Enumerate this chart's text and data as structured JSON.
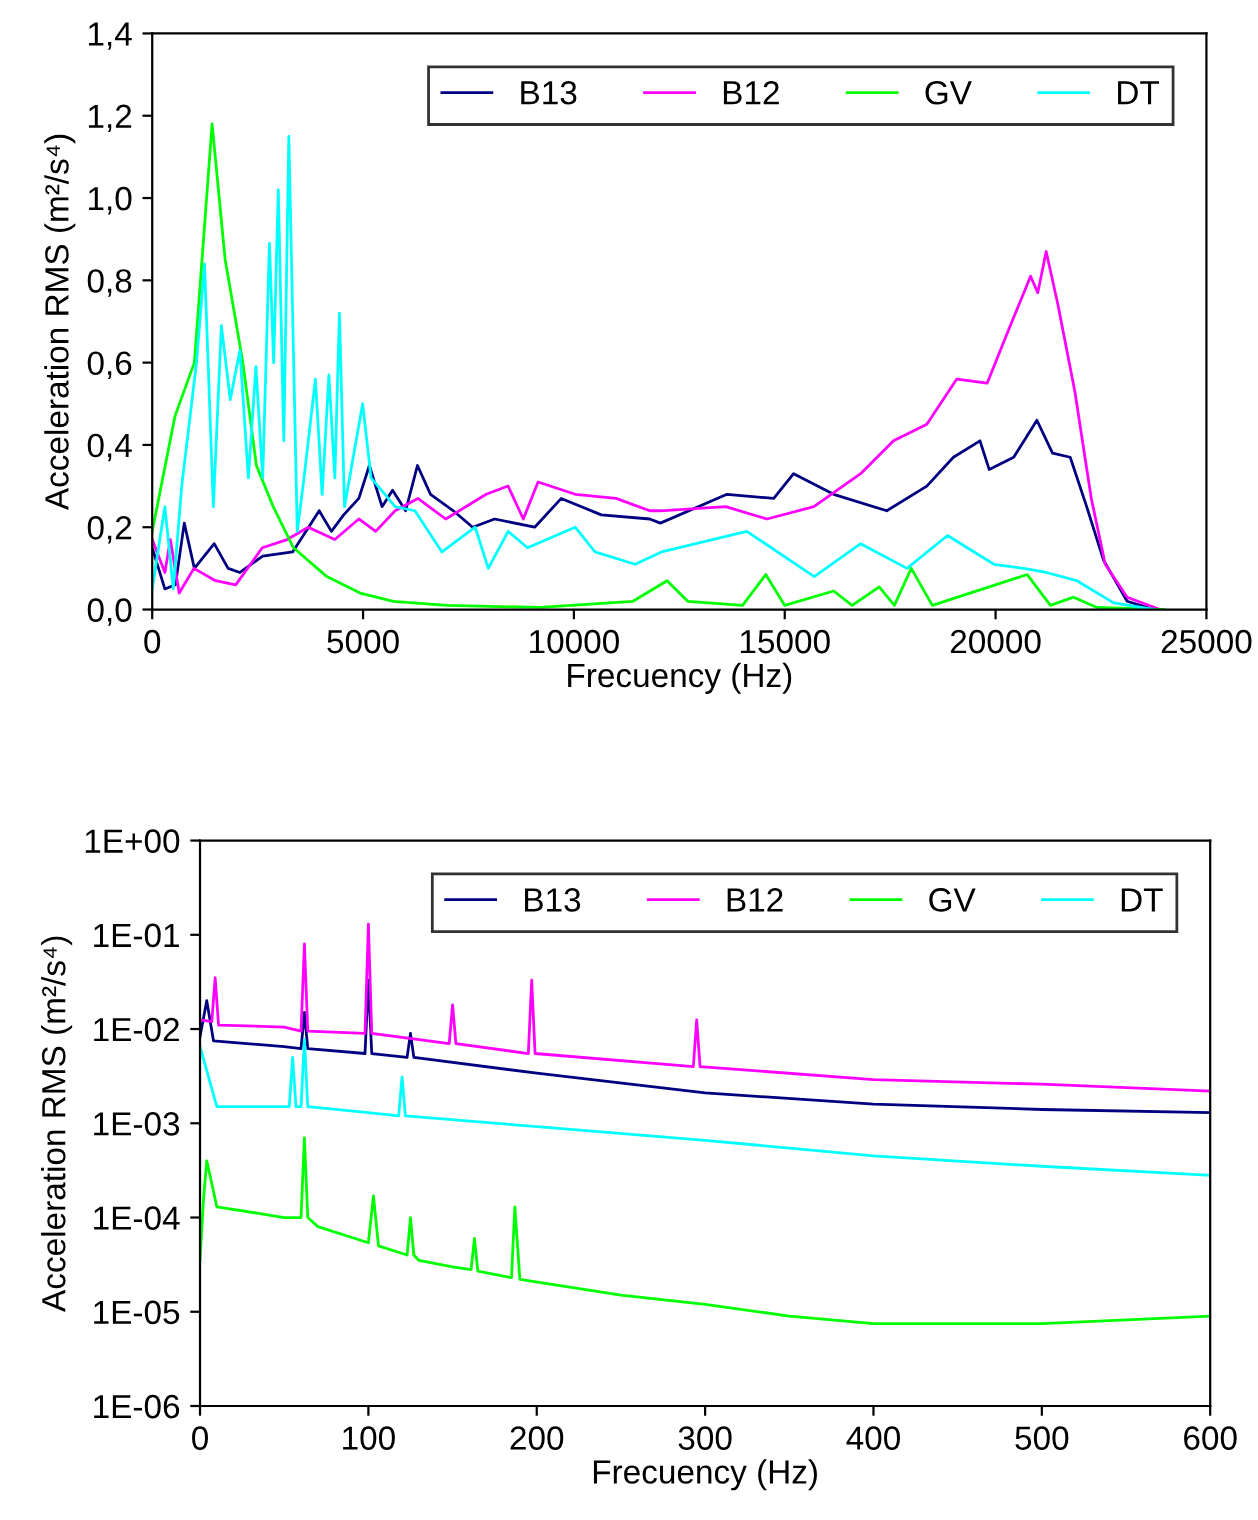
{
  "chart_data": [
    {
      "type": "line",
      "xlabel": "Frecuency (Hz)",
      "ylabel": "Acceleration RMS (m²/s⁴)",
      "legend": "top right",
      "xlim": [
        0,
        25000
      ],
      "xticks": [
        0,
        5000,
        10000,
        15000,
        20000,
        25000
      ],
      "ylim": [
        0,
        1.4
      ],
      "yticks": [
        {
          "value": 0,
          "label": "0,0"
        },
        {
          "value": 0.2,
          "label": "0,2"
        },
        {
          "value": 0.4,
          "label": "0,4"
        },
        {
          "value": 0.6,
          "label": "0,6"
        },
        {
          "value": 0.8,
          "label": "0,8"
        },
        {
          "value": 1.0,
          "label": "1,0"
        },
        {
          "value": 1.2,
          "label": "1,2"
        },
        {
          "value": 1.4,
          "label": "1,4"
        }
      ],
      "series": [
        {
          "name": "B13",
          "color": "#000080",
          "x": [
            0,
            300,
            550,
            760,
            1000,
            1470,
            1800,
            2080,
            2620,
            3330,
            3960,
            4250,
            4540,
            4900,
            5150,
            5450,
            5700,
            6010,
            6290,
            6600,
            7140,
            7600,
            8120,
            9070,
            9700,
            10650,
            11800,
            12050,
            13630,
            14740,
            15210,
            16160,
            17420,
            18370,
            19000,
            19630,
            19850,
            20430,
            20980,
            21350,
            21770,
            22160,
            22560,
            23120,
            23750
          ],
          "values": [
            0.15,
            0.05,
            0.06,
            0.21,
            0.1,
            0.16,
            0.1,
            0.09,
            0.13,
            0.14,
            0.24,
            0.19,
            0.23,
            0.27,
            0.35,
            0.25,
            0.29,
            0.24,
            0.35,
            0.28,
            0.24,
            0.2,
            0.22,
            0.2,
            0.27,
            0.23,
            0.22,
            0.21,
            0.28,
            0.27,
            0.33,
            0.28,
            0.24,
            0.3,
            0.37,
            0.41,
            0.34,
            0.37,
            0.46,
            0.38,
            0.37,
            0.25,
            0.12,
            0.02,
            0.0
          ]
        },
        {
          "name": "B12",
          "color": "#ff00ff",
          "x": [
            0,
            300,
            430,
            640,
            990,
            1500,
            1980,
            2610,
            3200,
            3700,
            4330,
            4900,
            5300,
            5760,
            6300,
            6960,
            7920,
            8440,
            8800,
            9150,
            10030,
            11000,
            11800,
            12050,
            13600,
            14580,
            15690,
            16800,
            17580,
            18370,
            19080,
            19800,
            20350,
            20830,
            21000,
            21200,
            21480,
            21880,
            22270,
            22600,
            23120,
            23900
          ],
          "values": [
            0.17,
            0.09,
            0.17,
            0.04,
            0.1,
            0.07,
            0.06,
            0.15,
            0.17,
            0.2,
            0.17,
            0.22,
            0.19,
            0.24,
            0.27,
            0.22,
            0.28,
            0.3,
            0.22,
            0.31,
            0.28,
            0.27,
            0.24,
            0.24,
            0.25,
            0.22,
            0.25,
            0.33,
            0.41,
            0.45,
            0.56,
            0.55,
            0.69,
            0.81,
            0.77,
            0.87,
            0.74,
            0.53,
            0.27,
            0.11,
            0.03,
            0.0
          ]
        },
        {
          "name": "GV",
          "color": "#00ff00",
          "x": [
            0,
            540,
            1000,
            1420,
            1730,
            1900,
            2150,
            2470,
            2870,
            3350,
            4140,
            4930,
            5720,
            6990,
            9200,
            11400,
            12210,
            12700,
            14000,
            14550,
            15000,
            16160,
            16600,
            17240,
            17600,
            18000,
            18500,
            20750,
            21300,
            21850,
            22400,
            23120,
            24000
          ],
          "values": [
            0.19,
            0.47,
            0.6,
            1.18,
            0.85,
            0.75,
            0.6,
            0.35,
            0.25,
            0.15,
            0.08,
            0.04,
            0.02,
            0.01,
            0.005,
            0.02,
            0.07,
            0.02,
            0.01,
            0.085,
            0.01,
            0.045,
            0.01,
            0.055,
            0.01,
            0.1,
            0.01,
            0.085,
            0.01,
            0.03,
            0.005,
            0.003,
            0.0
          ]
        },
        {
          "name": "DT",
          "color": "#00ffff",
          "x": [
            0,
            300,
            500,
            700,
            1050,
            1240,
            1450,
            1640,
            1850,
            2080,
            2280,
            2460,
            2620,
            2780,
            2880,
            2990,
            3120,
            3240,
            3440,
            3600,
            3870,
            4030,
            4190,
            4330,
            4440,
            4560,
            4990,
            5190,
            5760,
            6230,
            6870,
            7660,
            7970,
            8440,
            8900,
            10030,
            10500,
            11450,
            12080,
            14100,
            15700,
            16800,
            17900,
            18860,
            19960,
            20670,
            21200,
            21930,
            22800,
            23750
          ],
          "values": [
            0.05,
            0.25,
            0.05,
            0.3,
            0.6,
            0.84,
            0.25,
            0.69,
            0.51,
            0.63,
            0.32,
            0.59,
            0.32,
            0.89,
            0.6,
            1.02,
            0.41,
            1.15,
            0.19,
            0.32,
            0.56,
            0.28,
            0.57,
            0.32,
            0.72,
            0.25,
            0.5,
            0.32,
            0.25,
            0.24,
            0.14,
            0.2,
            0.1,
            0.19,
            0.15,
            0.2,
            0.14,
            0.11,
            0.14,
            0.19,
            0.08,
            0.16,
            0.1,
            0.18,
            0.11,
            0.1,
            0.09,
            0.07,
            0.016,
            0.0
          ]
        }
      ]
    },
    {
      "type": "line",
      "xlabel": "Frecuency (Hz)",
      "ylabel": "Acceleration RMS (m²/s⁴)",
      "legend": "top right",
      "log": "y",
      "xlim": [
        0,
        600
      ],
      "xticks": [
        0,
        100,
        200,
        300,
        400,
        500,
        600
      ],
      "ylim": [
        1e-06,
        1
      ],
      "yticks": [
        {
          "value": 1,
          "label": "1E+00"
        },
        {
          "value": 0.1,
          "label": "1E-01"
        },
        {
          "value": 0.01,
          "label": "1E-02"
        },
        {
          "value": 0.001,
          "label": "1E-03"
        },
        {
          "value": 0.0001,
          "label": "1E-04"
        },
        {
          "value": 1e-05,
          "label": "1E-05"
        },
        {
          "value": 1e-06,
          "label": "1E-06"
        }
      ],
      "series": [
        {
          "name": "B13",
          "color": "#000080",
          "x": [
            0,
            4,
            8,
            50,
            60,
            62,
            64,
            98,
            100,
            102,
            123,
            125,
            127,
            200,
            300,
            400,
            500,
            600
          ],
          "values": [
            0.0083,
            0.02,
            0.0075,
            0.0065,
            0.0062,
            0.015,
            0.0062,
            0.0055,
            0.033,
            0.0055,
            0.005,
            0.009,
            0.005,
            0.0034,
            0.0021,
            0.0016,
            0.0014,
            0.0013
          ]
        },
        {
          "name": "B12",
          "color": "#ff00ff",
          "x": [
            0,
            7,
            9,
            11,
            50,
            60,
            62,
            64,
            98,
            100,
            102,
            148,
            150,
            152,
            195,
            197,
            199,
            293,
            295,
            297,
            400,
            500,
            600
          ],
          "values": [
            0.0125,
            0.012,
            0.035,
            0.011,
            0.0105,
            0.0095,
            0.08,
            0.0095,
            0.009,
            0.13,
            0.009,
            0.007,
            0.018,
            0.007,
            0.0055,
            0.033,
            0.0055,
            0.004,
            0.0125,
            0.004,
            0.0029,
            0.0026,
            0.0022
          ]
        },
        {
          "name": "GV",
          "color": "#00ff00",
          "x": [
            0,
            2,
            4,
            10,
            50,
            60,
            62,
            64,
            70,
            100,
            103,
            106,
            123,
            125,
            127,
            130,
            150,
            161,
            163,
            165,
            185,
            187,
            190,
            250,
            300,
            350,
            400,
            500,
            600
          ],
          "values": [
            3.5e-05,
            0.00015,
            0.0004,
            0.00013,
            0.0001,
            0.0001,
            0.0007,
            0.0001,
            8e-05,
            5.4e-05,
            0.00017,
            5e-05,
            4e-05,
            0.0001,
            4e-05,
            3.5e-05,
            3e-05,
            2.8e-05,
            6e-05,
            2.7e-05,
            2.3e-05,
            0.00013,
            2.2e-05,
            1.5e-05,
            1.2e-05,
            9e-06,
            7.5e-06,
            7.5e-06,
            9e-06
          ]
        },
        {
          "name": "DT",
          "color": "#00ffff",
          "x": [
            0,
            10,
            50,
            53,
            55,
            57,
            60,
            62,
            64,
            100,
            118,
            120,
            122,
            200,
            300,
            400,
            500,
            600
          ],
          "values": [
            0.0065,
            0.0015,
            0.0015,
            0.0015,
            0.005,
            0.0015,
            0.0015,
            0.0077,
            0.0015,
            0.0013,
            0.0012,
            0.0031,
            0.0012,
            0.00092,
            0.00066,
            0.00045,
            0.00035,
            0.00028
          ]
        }
      ]
    }
  ]
}
